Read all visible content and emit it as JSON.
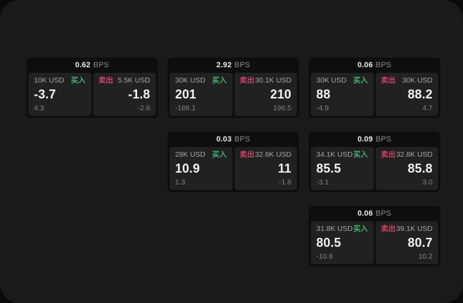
{
  "labels": {
    "buy": "买入",
    "sell": "卖出",
    "bps_suffix": "BPS"
  },
  "colors": {
    "buy_green": "#45b06e",
    "sell_red": "#d04265",
    "panel_bg": "#1a1a1b",
    "card_bg": "#0e0e0f",
    "tile_bg": "#212122"
  },
  "cards": [
    {
      "bps": "0.62",
      "buy": {
        "amount": "10K USD",
        "value": "-3.7",
        "change": "4.3"
      },
      "sell": {
        "amount": "5.5K USD",
        "value": "-1.8",
        "change": "-2.6"
      }
    },
    {
      "bps": "2.92",
      "buy": {
        "amount": "30K USD",
        "value": "201",
        "change": "-188.1"
      },
      "sell": {
        "amount": "30.1K USD",
        "value": "210",
        "change": "196.5"
      }
    },
    {
      "bps": "0.06",
      "buy": {
        "amount": "30K USD",
        "value": "88",
        "change": "-4.9"
      },
      "sell": {
        "amount": "30K USD",
        "value": "88.2",
        "change": "4.7"
      }
    },
    {
      "bps": "0.03",
      "buy": {
        "amount": "28K USD",
        "value": "10.9",
        "change": "1.3"
      },
      "sell": {
        "amount": "32.6K USD",
        "value": "11",
        "change": "-1.8"
      }
    },
    {
      "bps": "0.09",
      "buy": {
        "amount": "34.1K USD",
        "value": "85.5",
        "change": "-3.1"
      },
      "sell": {
        "amount": "32.8K USD",
        "value": "85.8",
        "change": "3.0"
      }
    },
    {
      "bps": "0.06",
      "buy": {
        "amount": "31.8K USD",
        "value": "80.5",
        "change": "-10.8"
      },
      "sell": {
        "amount": "39.1K USD",
        "value": "80.7",
        "change": "10.2"
      }
    }
  ]
}
